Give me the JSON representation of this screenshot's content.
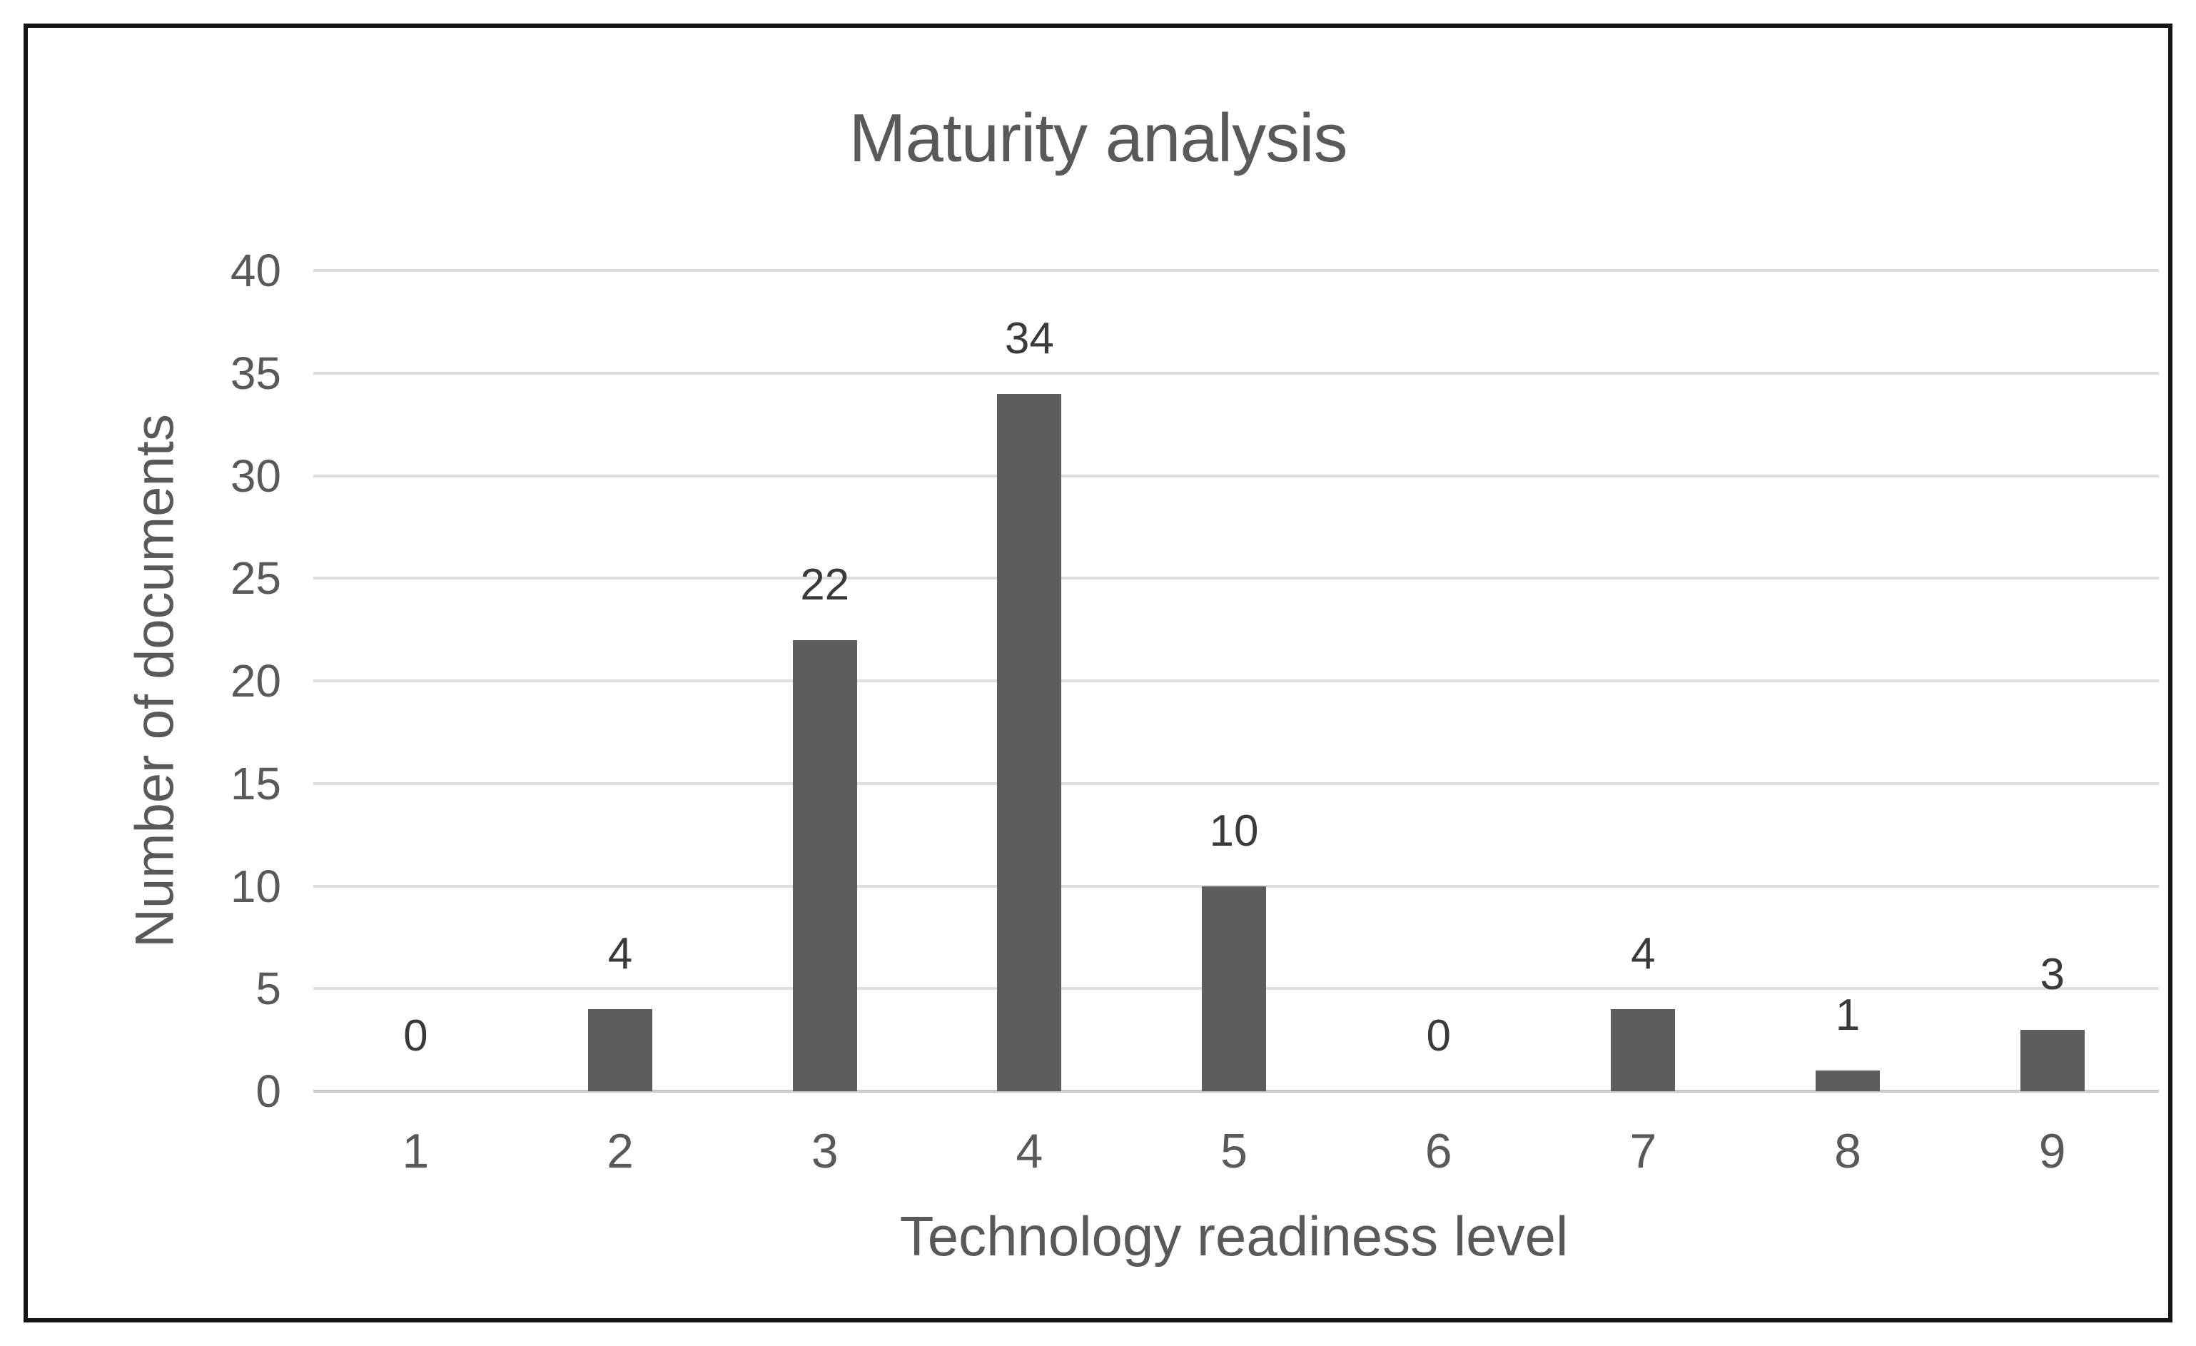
{
  "chart_data": {
    "type": "bar",
    "title": "Maturity analysis",
    "xlabel": "Technology readiness level",
    "ylabel": "Number of documents",
    "categories": [
      "1",
      "2",
      "3",
      "4",
      "5",
      "6",
      "7",
      "8",
      "9"
    ],
    "values": [
      0,
      4,
      22,
      34,
      10,
      0,
      4,
      1,
      3
    ],
    "data_labels": [
      "0",
      "4",
      "22",
      "34",
      "10",
      "0",
      "4",
      "1",
      "3"
    ],
    "ylim": [
      0,
      40
    ],
    "yticks": [
      0,
      5,
      10,
      15,
      20,
      25,
      30,
      35,
      40
    ],
    "grid": "horizontal-on",
    "legend_position": "none",
    "bar_color": "#5d5d5d",
    "data_label_color": "#3a3a3a",
    "axis_text_color": "#595959",
    "gridline_color": "#dedede",
    "axis_line_color": "#c9c9c9",
    "frame_border_color": "#141414",
    "background_color": "#ffffff"
  }
}
